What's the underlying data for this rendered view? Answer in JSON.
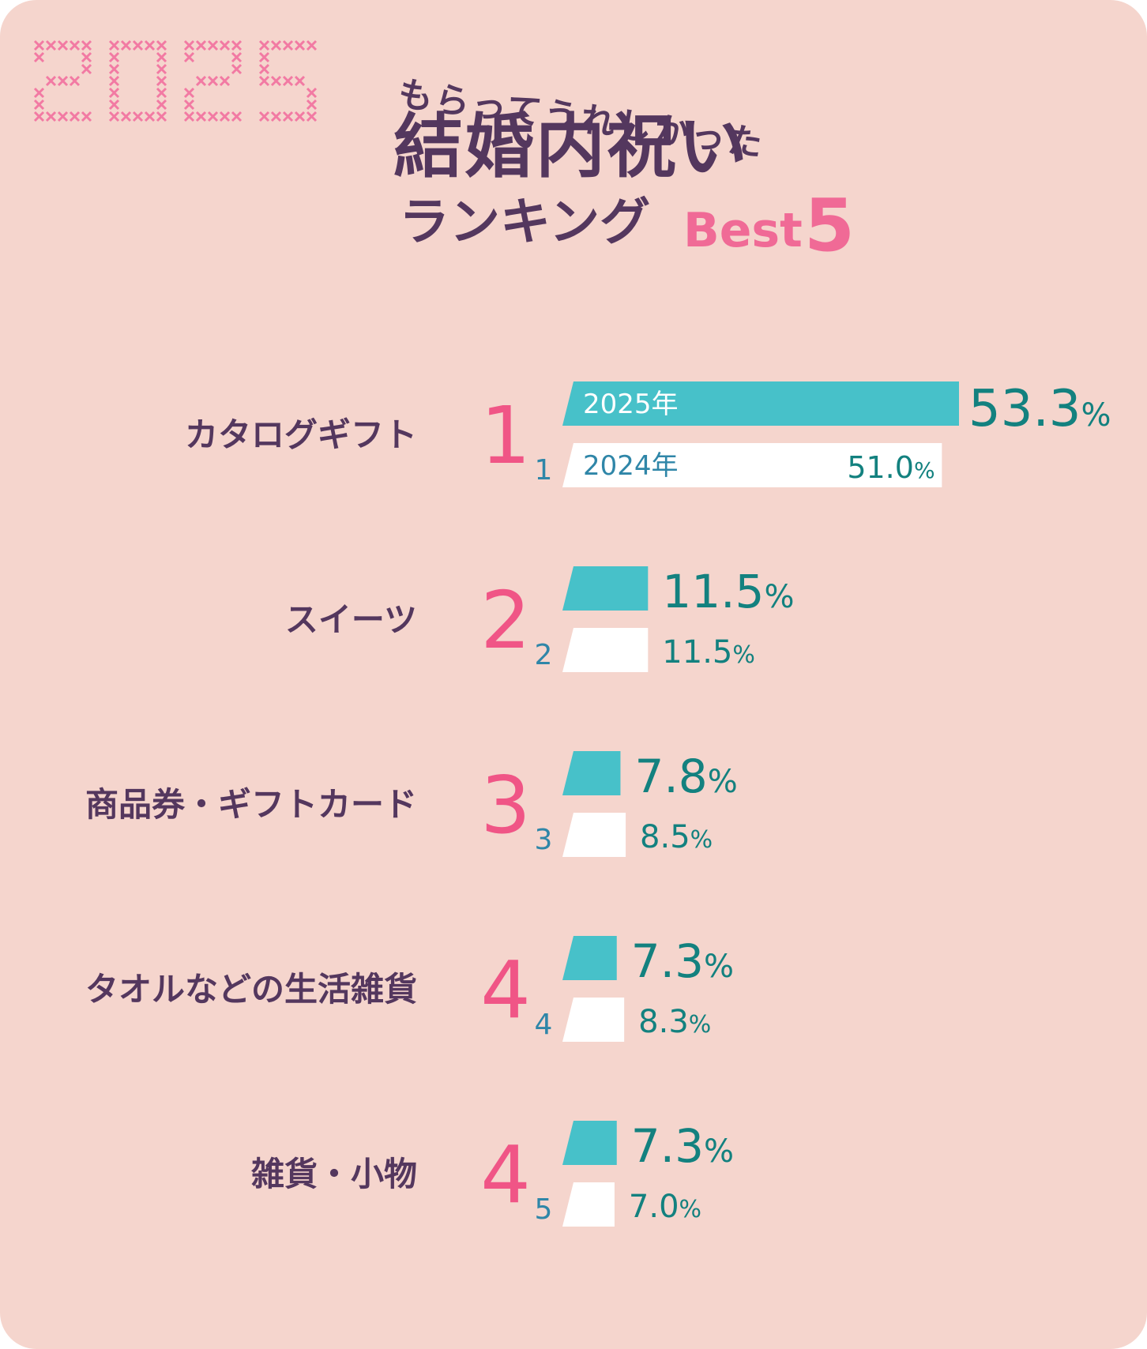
{
  "header": {
    "year": "2025",
    "subtitle": "もらってうれしかった",
    "title": "結婚内祝い",
    "ranking_label": "ランキング",
    "best_label": "Best",
    "best_number": "5"
  },
  "colors": {
    "background": "#f5d5cd",
    "current_bar": "#47c1c9",
    "previous_bar": "#ffffff",
    "title": "#54375e",
    "accent_pink": "#f05586",
    "value_teal": "#13817f",
    "prev_rank_blue": "#2f86a8"
  },
  "chart_data": {
    "type": "bar",
    "orientation": "horizontal",
    "title": "もらってうれしかった 結婚内祝い ランキング Best5",
    "series_labels": {
      "current": "2025年",
      "previous": "2024年"
    },
    "unit": "%",
    "xlim": [
      0,
      53.3
    ],
    "items": [
      {
        "category": "カタログギフト",
        "rank": "1",
        "prev_rank": "1",
        "current": 53.3,
        "previous": 51.0,
        "current_label": "53.3",
        "previous_label": "51.0"
      },
      {
        "category": "スイーツ",
        "rank": "2",
        "prev_rank": "2",
        "current": 11.5,
        "previous": 11.5,
        "current_label": "11.5",
        "previous_label": "11.5"
      },
      {
        "category": "商品券・ギフトカード",
        "rank": "3",
        "prev_rank": "3",
        "current": 7.8,
        "previous": 8.5,
        "current_label": "7.8",
        "previous_label": "8.5"
      },
      {
        "category": "タオルなどの生活雑貨",
        "rank": "4",
        "prev_rank": "4",
        "current": 7.3,
        "previous": 8.3,
        "current_label": "7.3",
        "previous_label": "8.3"
      },
      {
        "category": "雑貨・小物",
        "rank": "4",
        "prev_rank": "5",
        "current": 7.3,
        "previous": 7.0,
        "current_label": "7.3",
        "previous_label": "7.0"
      }
    ]
  }
}
